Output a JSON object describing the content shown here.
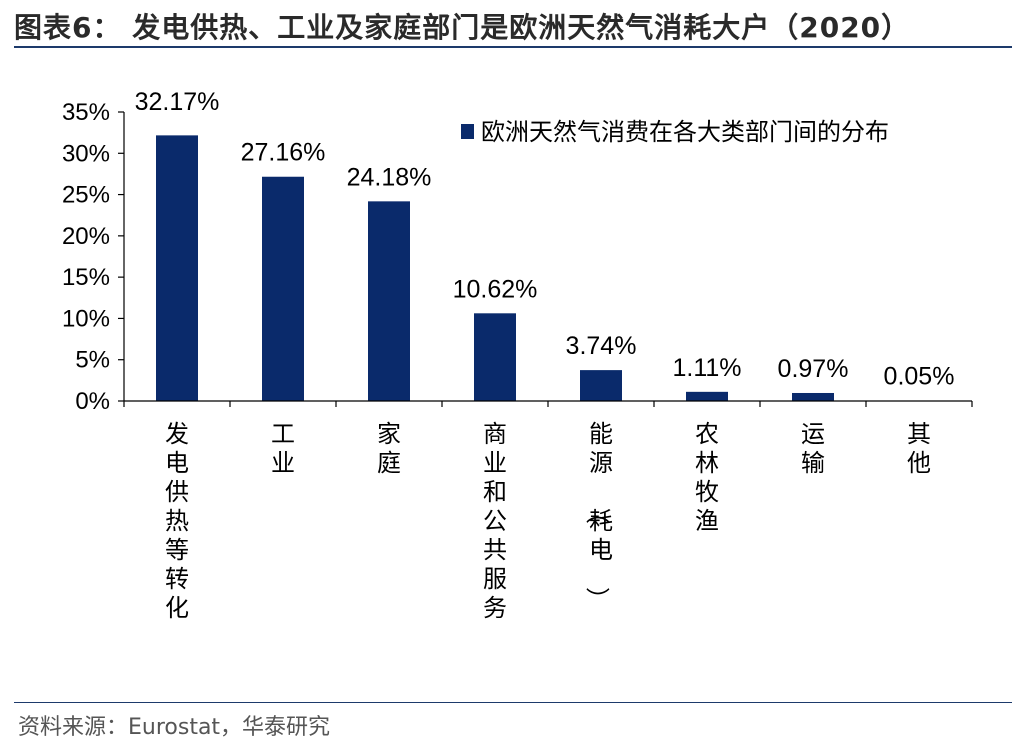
{
  "header": {
    "title": "图表6：  发电供热、工业及家庭部门是欧洲天然气消耗大户（2020）"
  },
  "footer": {
    "source": "资料来源：Eurostat，华泰研究"
  },
  "chart_data": {
    "type": "bar",
    "categories": [
      "发电供热等转化",
      "工业",
      "家庭",
      "商业和公共服务",
      "能源（耗电）",
      "农林牧渔",
      "运输",
      "其他"
    ],
    "series": [
      {
        "name": "欧洲天然气消费在各大类部门间的分布",
        "values": [
          32.17,
          27.16,
          24.18,
          10.62,
          3.74,
          1.11,
          0.97,
          0.05
        ],
        "labels": [
          "32.17%",
          "27.16%",
          "24.18%",
          "10.62%",
          "3.74%",
          "1.11%",
          "0.97%",
          "0.05%"
        ]
      }
    ],
    "yticks": [
      "0%",
      "5%",
      "10%",
      "15%",
      "20%",
      "25%",
      "30%",
      "35%"
    ],
    "ylim": [
      0,
      35
    ],
    "legend_position": "top-right",
    "grid": false,
    "bar_color": "#0a2a6b"
  }
}
